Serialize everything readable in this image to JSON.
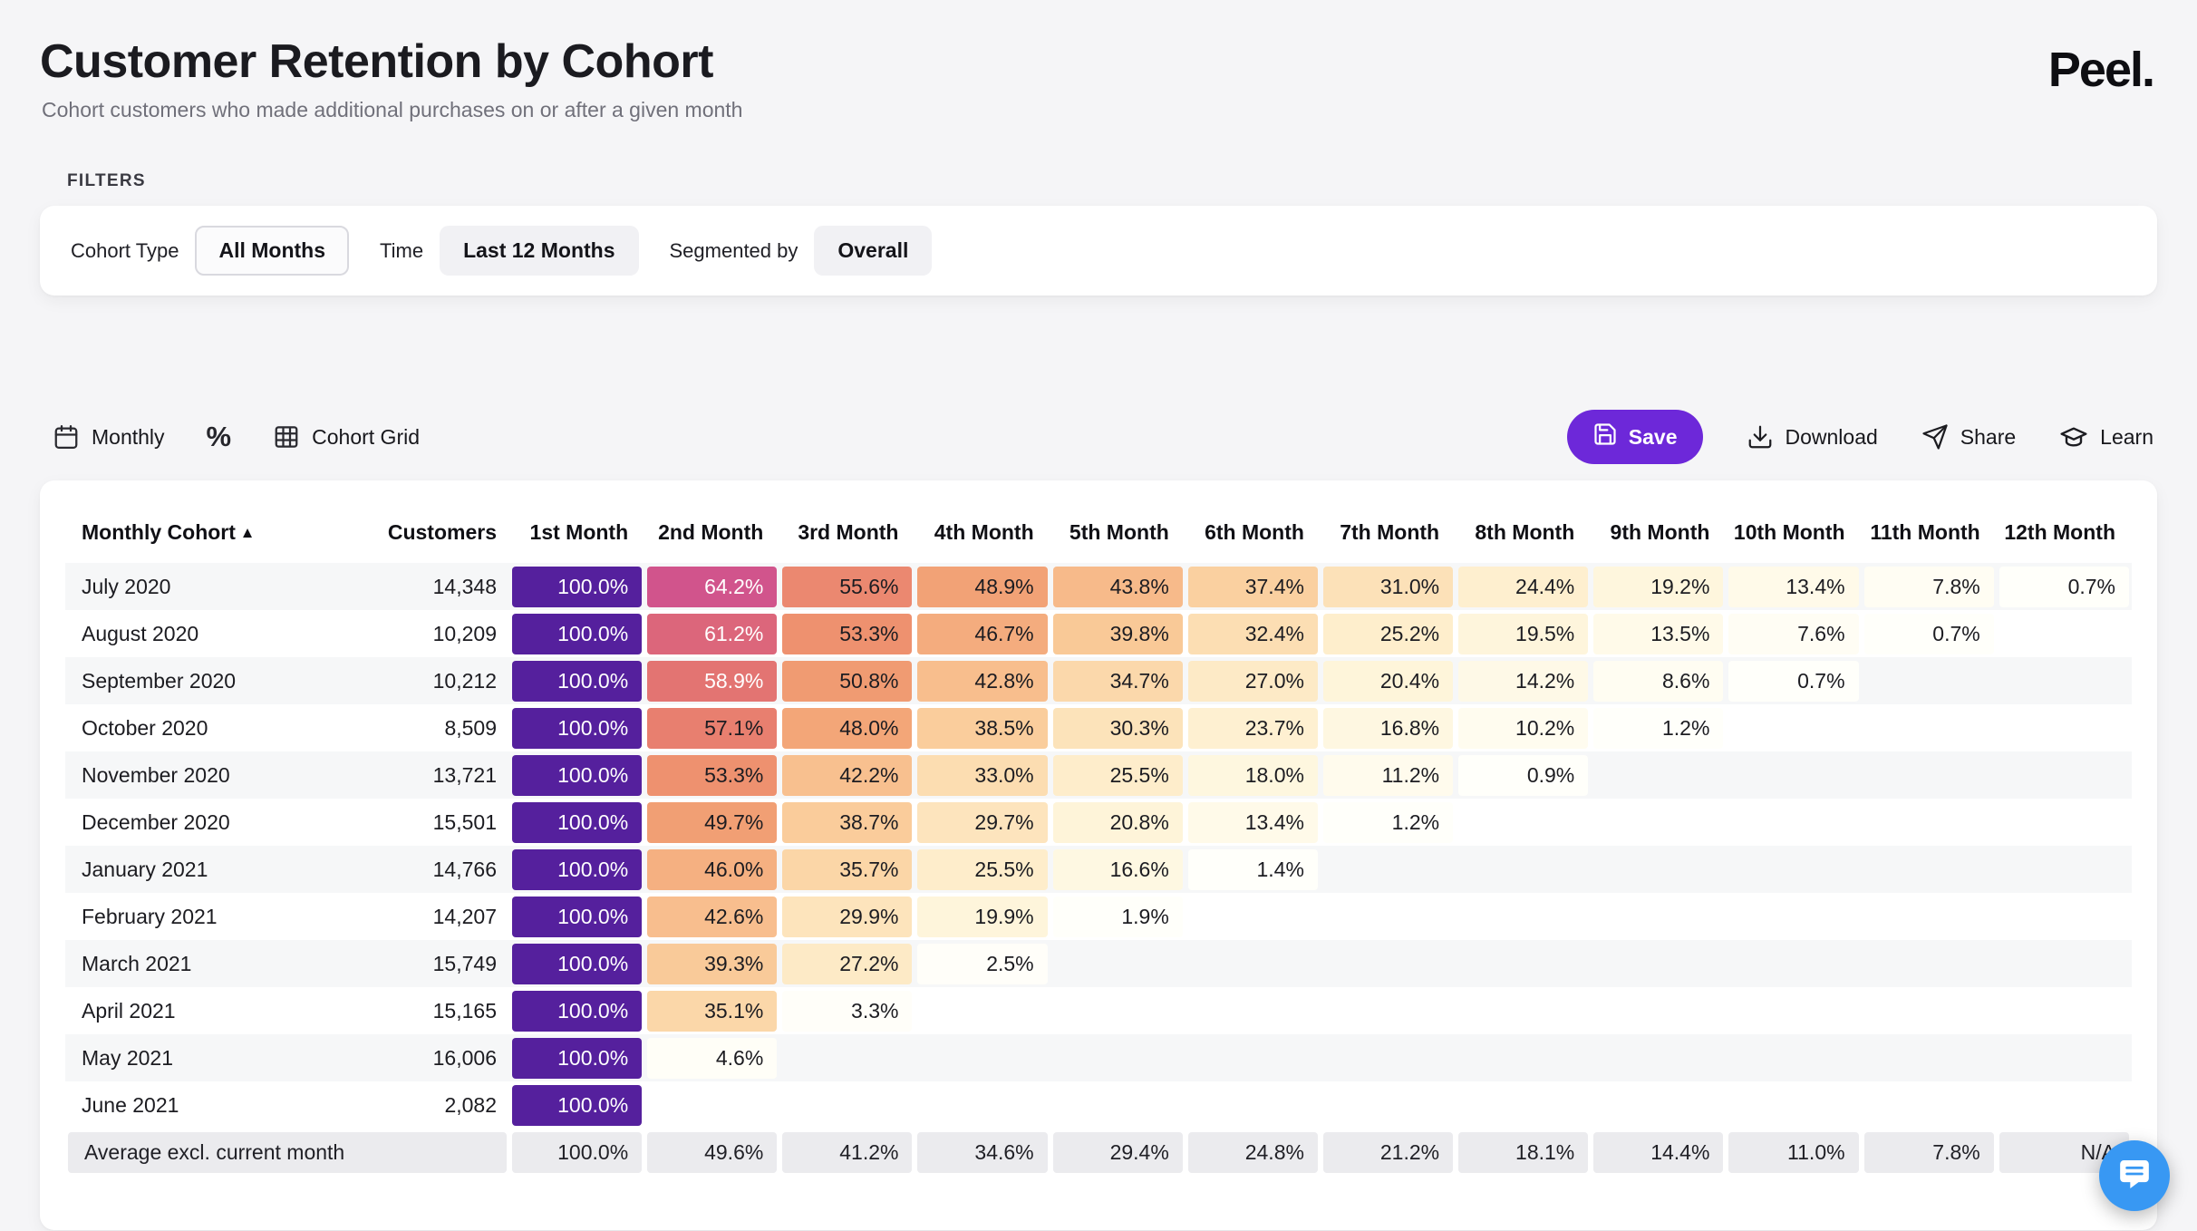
{
  "header": {
    "title": "Customer Retention by Cohort",
    "subtitle": "Cohort customers who made additional purchases on or after a given month",
    "logo": "Peel."
  },
  "filters": {
    "section_label": "FILTERS",
    "groups": [
      {
        "label": "Cohort Type",
        "value": "All Months"
      },
      {
        "label": "Time",
        "value": "Last 12 Months"
      },
      {
        "label": "Segmented by",
        "value": "Overall"
      }
    ]
  },
  "toolbar": {
    "monthly_label": "Monthly",
    "percent_label": "%",
    "cohort_grid_label": "Cohort Grid",
    "save_label": "Save",
    "download_label": "Download",
    "share_label": "Share",
    "learn_label": "Learn"
  },
  "colors": {
    "accent": "#6d28d9",
    "retention_full": "#55209d",
    "average_row_bg": "#ebebee",
    "chat_launcher": "#3898f3",
    "stripe": "#f6f7f8"
  },
  "chart_data": {
    "type": "heatmap",
    "title": "Customer Retention by Cohort",
    "sort_indicator": "▲",
    "columns": [
      "Monthly Cohort",
      "Customers",
      "1st Month",
      "2nd Month",
      "3rd Month",
      "4th Month",
      "5th Month",
      "6th Month",
      "7th Month",
      "8th Month",
      "9th Month",
      "10th Month",
      "11th Month",
      "12th Month"
    ],
    "rows": [
      {
        "cohort": "July 2020",
        "customers": "14,348",
        "values": [
          100.0,
          64.2,
          55.6,
          48.9,
          43.8,
          37.4,
          31.0,
          24.4,
          19.2,
          13.4,
          7.8,
          0.7
        ]
      },
      {
        "cohort": "August 2020",
        "customers": "10,209",
        "values": [
          100.0,
          61.2,
          53.3,
          46.7,
          39.8,
          32.4,
          25.2,
          19.5,
          13.5,
          7.6,
          0.7
        ]
      },
      {
        "cohort": "September 2020",
        "customers": "10,212",
        "values": [
          100.0,
          58.9,
          50.8,
          42.8,
          34.7,
          27.0,
          20.4,
          14.2,
          8.6,
          0.7
        ]
      },
      {
        "cohort": "October 2020",
        "customers": "8,509",
        "values": [
          100.0,
          57.1,
          48.0,
          38.5,
          30.3,
          23.7,
          16.8,
          10.2,
          1.2
        ]
      },
      {
        "cohort": "November 2020",
        "customers": "13,721",
        "values": [
          100.0,
          53.3,
          42.2,
          33.0,
          25.5,
          18.0,
          11.2,
          0.9
        ]
      },
      {
        "cohort": "December 2020",
        "customers": "15,501",
        "values": [
          100.0,
          49.7,
          38.7,
          29.7,
          20.8,
          13.4,
          1.2
        ]
      },
      {
        "cohort": "January 2021",
        "customers": "14,766",
        "values": [
          100.0,
          46.0,
          35.7,
          25.5,
          16.6,
          1.4
        ]
      },
      {
        "cohort": "February 2021",
        "customers": "14,207",
        "values": [
          100.0,
          42.6,
          29.9,
          19.9,
          1.9
        ]
      },
      {
        "cohort": "March 2021",
        "customers": "15,749",
        "values": [
          100.0,
          39.3,
          27.2,
          2.5
        ]
      },
      {
        "cohort": "April 2021",
        "customers": "15,165",
        "values": [
          100.0,
          35.1,
          3.3
        ]
      },
      {
        "cohort": "May 2021",
        "customers": "16,006",
        "values": [
          100.0,
          4.6
        ]
      },
      {
        "cohort": "June 2021",
        "customers": "2,082",
        "values": [
          100.0
        ]
      }
    ],
    "average_row": {
      "label": "Average excl. current month",
      "values": [
        "100.0%",
        "49.6%",
        "41.2%",
        "34.6%",
        "29.4%",
        "24.8%",
        "21.2%",
        "18.1%",
        "14.4%",
        "11.0%",
        "7.8%",
        "N/A"
      ]
    },
    "color_stops": [
      [
        0,
        "#fffffb"
      ],
      [
        4,
        "#fffef8"
      ],
      [
        8,
        "#fffdf3"
      ],
      [
        12,
        "#fffbec"
      ],
      [
        16,
        "#fef8e3"
      ],
      [
        20,
        "#fef5db"
      ],
      [
        24,
        "#fef0d0"
      ],
      [
        28,
        "#fde8c3"
      ],
      [
        32,
        "#fcdfb4"
      ],
      [
        36,
        "#fbd5a6"
      ],
      [
        40,
        "#f9c896"
      ],
      [
        44,
        "#f7b989"
      ],
      [
        48,
        "#f3a678"
      ],
      [
        52,
        "#ef966f"
      ],
      [
        55,
        "#ec8b70"
      ],
      [
        58,
        "#e67a6f"
      ],
      [
        61,
        "#dd677a"
      ],
      [
        64,
        "#d2558c"
      ],
      [
        68,
        "#c14693"
      ],
      [
        80,
        "#822d98"
      ],
      [
        100,
        "#55209d"
      ]
    ]
  }
}
